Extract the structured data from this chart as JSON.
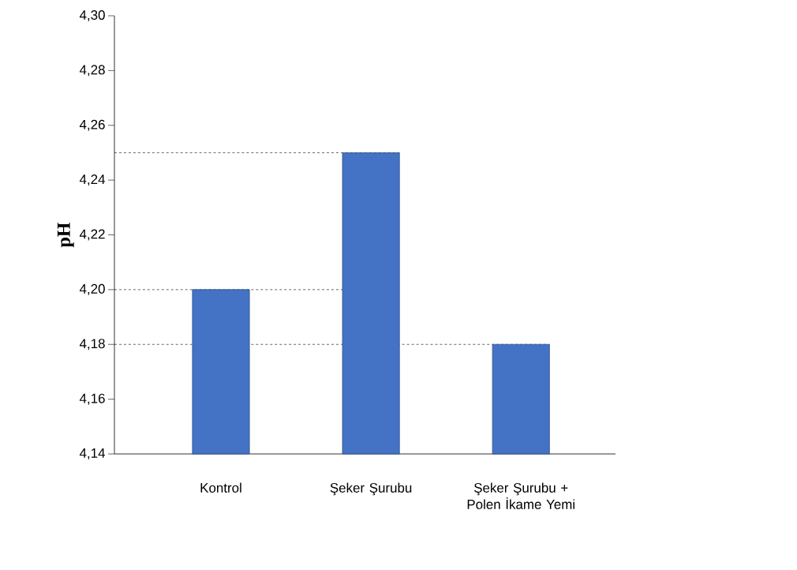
{
  "chart_data": {
    "type": "bar",
    "ylabel": "pH",
    "categories": [
      "Kontrol",
      "Şeker Şurubu",
      "Şeker Şurubu + Polen İkame Yemi"
    ],
    "values": [
      4.2,
      4.25,
      4.18
    ],
    "color": "#4472c4",
    "ylim": [
      4.14,
      4.3
    ],
    "yticks": [
      {
        "value": 4.14,
        "label": "4,14"
      },
      {
        "value": 4.16,
        "label": "4,16"
      },
      {
        "value": 4.18,
        "label": "4,18"
      },
      {
        "value": 4.2,
        "label": "4,20"
      },
      {
        "value": 4.22,
        "label": "4,22"
      },
      {
        "value": 4.24,
        "label": "4,24"
      },
      {
        "value": 4.26,
        "label": "4,26"
      },
      {
        "value": 4.28,
        "label": "4,28"
      },
      {
        "value": 4.3,
        "label": "4,30"
      }
    ],
    "ref_lines": [
      {
        "axis": "y",
        "value": 4.25,
        "line_style": "dashed"
      },
      {
        "axis": "y",
        "value": 4.2,
        "line_style": "dashed"
      },
      {
        "axis": "y",
        "value": 4.18,
        "line_style": "dashed"
      }
    ]
  }
}
